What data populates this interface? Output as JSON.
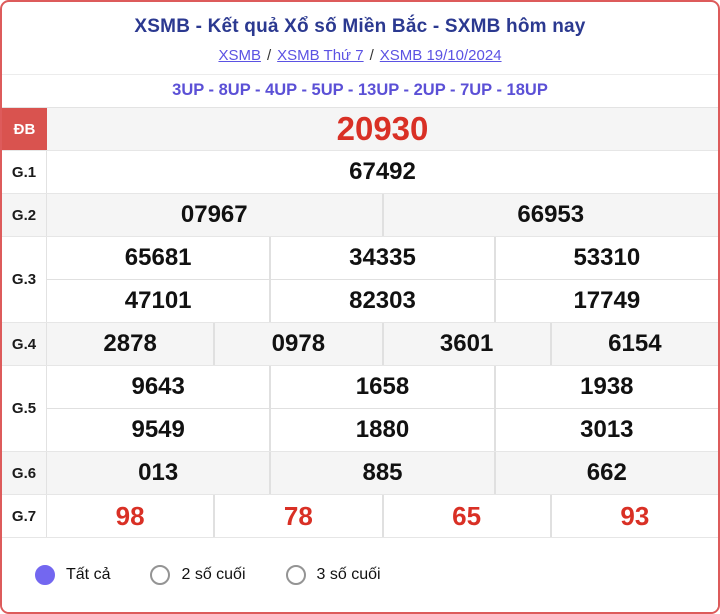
{
  "header": {
    "title": "XSMB - Kết quả Xổ số Miền Bắc - SXMB hôm nay",
    "breadcrumbs": [
      {
        "label": "XSMB"
      },
      {
        "label": "XSMB Thứ 7"
      },
      {
        "label": "XSMB 19/10/2024"
      }
    ],
    "breadcrumb_separator": "/",
    "subtitle": "3UP - 8UP - 4UP - 5UP - 13UP - 2UP - 7UP - 18UP"
  },
  "results": {
    "rows": [
      {
        "label": "ĐB",
        "emphasis": "special",
        "groups": [
          [
            "20930"
          ]
        ]
      },
      {
        "label": "G.1",
        "emphasis": "none",
        "groups": [
          [
            "67492"
          ]
        ]
      },
      {
        "label": "G.2",
        "emphasis": "none",
        "groups": [
          [
            "07967",
            "66953"
          ]
        ]
      },
      {
        "label": "G.3",
        "emphasis": "none",
        "groups": [
          [
            "65681",
            "34335",
            "53310"
          ],
          [
            "47101",
            "82303",
            "17749"
          ]
        ]
      },
      {
        "label": "G.4",
        "emphasis": "none",
        "groups": [
          [
            "2878",
            "0978",
            "3601",
            "6154"
          ]
        ]
      },
      {
        "label": "G.5",
        "emphasis": "none",
        "groups": [
          [
            "9643",
            "1658",
            "1938"
          ],
          [
            "9549",
            "1880",
            "3013"
          ]
        ]
      },
      {
        "label": "G.6",
        "emphasis": "none",
        "groups": [
          [
            "013",
            "885",
            "662"
          ]
        ]
      },
      {
        "label": "G.7",
        "emphasis": "red",
        "groups": [
          [
            "98",
            "78",
            "65",
            "93"
          ]
        ]
      }
    ]
  },
  "filters": {
    "options": [
      {
        "label": "Tất cả",
        "selected": true
      },
      {
        "label": "2 số cuối",
        "selected": false
      },
      {
        "label": "3 số cuối",
        "selected": false
      }
    ]
  },
  "colors": {
    "card_border": "#dd5b5b",
    "title_navy": "#2b3990",
    "link_purple": "#5b52e3",
    "subtitle_purple": "#5b50d6",
    "special_label_bg": "#d9534f",
    "prize_red": "#d93025",
    "shaded_row_bg": "#f5f5f5",
    "radio_selected": "#7367f0"
  }
}
